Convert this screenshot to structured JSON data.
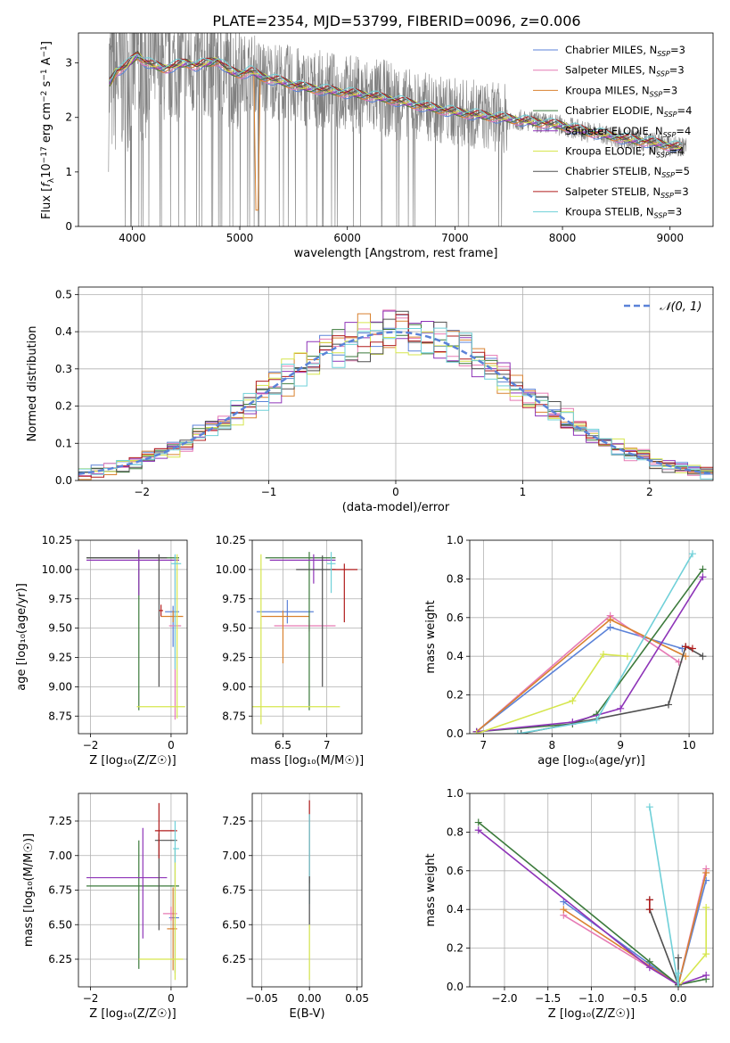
{
  "figure_title": "PLATE=2354, MJD=53799, FIBERID=0096, z=0.006",
  "colors": {
    "Chabrier MILES": "#5b82d8",
    "Salpeter MILES": "#e67ab4",
    "Kroupa MILES": "#d98230",
    "Chabrier ELODIE": "#3b7a3b",
    "Salpeter ELODIE": "#8e34b8",
    "Kroupa ELODIE": "#d6e64e",
    "Chabrier STELIB": "#505050",
    "Salpeter STELIB": "#b01c1c",
    "Kroupa STELIB": "#6fd0d8",
    "data": "#808080",
    "grid": "#b0b0b0"
  },
  "chart_data": [
    {
      "id": "spectrum",
      "type": "line",
      "title": "PLATE=2354, MJD=53799, FIBERID=0096, z=0.006",
      "xlabel": "wavelength [Angstrom, rest frame]",
      "ylabel_parts": [
        "Flux [",
        "f",
        "λ",
        "10",
        "−17",
        " erg cm",
        "−2",
        " s",
        "−1",
        " A",
        "−1",
        "]"
      ],
      "xlim": [
        3500,
        9400
      ],
      "ylim": [
        0,
        3.55
      ],
      "xticks": [
        4000,
        5000,
        6000,
        7000,
        8000,
        9000
      ],
      "yticks": [
        0,
        1,
        2,
        3
      ],
      "grid": false,
      "legend_position": "top-right",
      "legend": [
        {
          "label": "Chabrier MILES, N",
          "sub": "SSP",
          "tail": "=3"
        },
        {
          "label": "Salpeter MILES, N",
          "sub": "SSP",
          "tail": "=3"
        },
        {
          "label": "Kroupa MILES, N",
          "sub": "SSP",
          "tail": "=3"
        },
        {
          "label": "Chabrier ELODIE, N",
          "sub": "SSP",
          "tail": "=4"
        },
        {
          "label": "Salpeter ELODIE, N",
          "sub": "SSP",
          "tail": "=4"
        },
        {
          "label": "Kroupa ELODIE, N",
          "sub": "SSP",
          "tail": "=4"
        },
        {
          "label": "Chabrier STELIB, N",
          "sub": "SSP",
          "tail": "=5"
        },
        {
          "label": "Salpeter STELIB, N",
          "sub": "SSP",
          "tail": "=3"
        },
        {
          "label": "Kroupa STELIB, N",
          "sub": "SSP",
          "tail": "=3"
        }
      ],
      "model_continuum": {
        "x": [
          3780,
          3850,
          3950,
          4050,
          4100,
          4200,
          4300,
          4400,
          4500,
          4600,
          4700,
          4800,
          4900,
          5000,
          5100,
          5200,
          5300,
          5400,
          5500,
          5600,
          5800,
          6000,
          6200,
          6400,
          6600,
          6800,
          7000,
          7200,
          7400,
          7600,
          7800,
          8000,
          8200,
          8400,
          8600,
          8800,
          9000,
          9100
        ],
        "y": [
          2.6,
          2.85,
          2.95,
          3.15,
          3.05,
          2.95,
          2.9,
          2.95,
          3.0,
          2.95,
          3.0,
          3.05,
          2.85,
          2.8,
          2.85,
          2.75,
          2.7,
          2.65,
          2.6,
          2.55,
          2.5,
          2.45,
          2.4,
          2.33,
          2.25,
          2.17,
          2.1,
          2.05,
          2.0,
          1.95,
          1.9,
          1.85,
          1.75,
          1.68,
          1.6,
          1.55,
          1.48,
          1.45
        ]
      },
      "data_range": [
        3780,
        9150
      ]
    },
    {
      "id": "residuals",
      "type": "line",
      "xlabel": "(data-model)/error",
      "ylabel": "Normed distribution",
      "xlim": [
        -2.5,
        2.5
      ],
      "ylim": [
        0,
        0.52
      ],
      "xticks": [
        -2,
        -1,
        0,
        1,
        2
      ],
      "yticks": [
        0.0,
        0.1,
        0.2,
        0.3,
        0.4,
        0.5
      ],
      "grid": true,
      "legend_position": "top-right",
      "legend_label": "𝒩(0, 1)",
      "bin_width": 0.1
    },
    {
      "id": "age-vs-Z",
      "type": "scatter",
      "xlabel": "Z [log₁₀(Z/Z☉)]",
      "ylabel": "age  [log₁₀(age/yr)]",
      "xlim": [
        -2.3,
        0.4
      ],
      "ylim": [
        8.6,
        10.25
      ],
      "xticks": [
        -2,
        0
      ],
      "yticks": [
        8.75,
        9.0,
        9.25,
        9.5,
        9.75,
        10.0,
        10.25
      ],
      "grid": true,
      "points": [
        {
          "model": "Chabrier MILES",
          "x": 0.05,
          "xerr": [
            0.2,
            0.15
          ],
          "y": 9.64,
          "yerr": [
            0.3,
            0.05
          ]
        },
        {
          "model": "Salpeter MILES",
          "x": 0.1,
          "xerr": [
            0.15,
            0.15
          ],
          "y": 9.52,
          "yerr": [
            0.8,
            0.6
          ]
        },
        {
          "model": "Kroupa MILES",
          "x": 0.05,
          "xerr": [
            0.3,
            0.25
          ],
          "y": 9.6,
          "yerr": [
            0.05,
            0.05
          ]
        },
        {
          "model": "Chabrier ELODIE",
          "x": -0.8,
          "xerr": [
            1.3,
            1.0
          ],
          "y": 10.1,
          "yerr": [
            1.3,
            0.06
          ]
        },
        {
          "model": "Salpeter ELODIE",
          "x": -0.8,
          "xerr": [
            1.3,
            1.0
          ],
          "y": 10.08,
          "yerr": [
            0.3,
            0.09
          ]
        },
        {
          "model": "Kroupa ELODIE",
          "x": 0.15,
          "xerr": [
            1.0,
            0.2
          ],
          "y": 8.83,
          "yerr": [
            0.1,
            1.3
          ]
        },
        {
          "model": "Chabrier STELIB",
          "x": -0.3,
          "xerr": [
            1.8,
            0.2
          ],
          "y": 10.1,
          "yerr": [
            1.1,
            0.03
          ]
        },
        {
          "model": "Salpeter STELIB",
          "x": -0.25,
          "xerr": [
            0.05,
            0.05
          ],
          "y": 9.65,
          "yerr": [
            0.05,
            0.05
          ]
        },
        {
          "model": "Kroupa STELIB",
          "x": 0.1,
          "xerr": [
            0.1,
            0.15
          ],
          "y": 10.05,
          "yerr": [
            0.9,
            0.08
          ]
        }
      ]
    },
    {
      "id": "age-vs-mass",
      "type": "scatter",
      "xlabel": "mass [log₁₀(M/M☉)]",
      "ylabel": "",
      "xlim": [
        6.15,
        7.4
      ],
      "ylim": [
        8.6,
        10.25
      ],
      "xticks": [
        6.5,
        7.0
      ],
      "yticks": [
        8.75,
        9.0,
        9.25,
        9.5,
        9.75,
        10.0,
        10.25
      ],
      "grid": true,
      "points": [
        {
          "model": "Chabrier MILES",
          "x": 6.55,
          "xerr": [
            0.35,
            0.3
          ],
          "y": 9.64,
          "yerr": [
            0.1,
            0.1
          ]
        },
        {
          "model": "Salpeter MILES",
          "x": 6.8,
          "xerr": [
            0.4,
            0.3
          ],
          "y": 9.52,
          "yerr": [
            0.05,
            0.05
          ]
        },
        {
          "model": "Kroupa MILES",
          "x": 6.5,
          "xerr": [
            0.25,
            0.3
          ],
          "y": 9.6,
          "yerr": [
            0.4,
            0.05
          ]
        },
        {
          "model": "Chabrier ELODIE",
          "x": 6.8,
          "xerr": [
            0.5,
            0.3
          ],
          "y": 10.1,
          "yerr": [
            1.3,
            0.05
          ]
        },
        {
          "model": "Salpeter ELODIE",
          "x": 6.85,
          "xerr": [
            0.5,
            0.25
          ],
          "y": 10.08,
          "yerr": [
            0.2,
            0.05
          ]
        },
        {
          "model": "Kroupa ELODIE",
          "x": 6.25,
          "xerr": [
            0.1,
            0.9
          ],
          "y": 8.83,
          "yerr": [
            0.15,
            1.3
          ]
        },
        {
          "model": "Chabrier STELIB",
          "x": 6.95,
          "xerr": [
            0.3,
            0.15
          ],
          "y": 10.0,
          "yerr": [
            1.0,
            0.12
          ]
        },
        {
          "model": "Salpeter STELIB",
          "x": 7.2,
          "xerr": [
            0.15,
            0.15
          ],
          "y": 10.0,
          "yerr": [
            0.45,
            0.05
          ]
        },
        {
          "model": "Kroupa STELIB",
          "x": 7.05,
          "xerr": [
            0.05,
            0.05
          ],
          "y": 10.05,
          "yerr": [
            0.25,
            0.1
          ]
        }
      ]
    },
    {
      "id": "weight-vs-age",
      "type": "line",
      "xlabel": "age  [log₁₀(age/yr)]",
      "ylabel": "mass weight",
      "xlim": [
        6.8,
        10.35
      ],
      "ylim": [
        0,
        1
      ],
      "xticks": [
        7,
        8,
        9,
        10
      ],
      "yticks": [
        0.0,
        0.2,
        0.4,
        0.6,
        0.8,
        1.0
      ],
      "grid": true,
      "series": [
        {
          "model": "Chabrier MILES",
          "x": [
            6.9,
            8.85,
            9.9
          ],
          "y": [
            0.01,
            0.55,
            0.44
          ]
        },
        {
          "model": "Salpeter MILES",
          "x": [
            6.9,
            8.85,
            9.85
          ],
          "y": [
            0.01,
            0.61,
            0.37
          ]
        },
        {
          "model": "Kroupa MILES",
          "x": [
            6.9,
            8.85,
            9.95
          ],
          "y": [
            0.01,
            0.59,
            0.4
          ]
        },
        {
          "model": "Chabrier ELODIE",
          "x": [
            6.9,
            8.3,
            8.65,
            10.2
          ],
          "y": [
            0.01,
            0.05,
            0.1,
            0.85
          ]
        },
        {
          "model": "Salpeter ELODIE",
          "x": [
            6.9,
            8.3,
            9.0,
            10.2
          ],
          "y": [
            0.01,
            0.06,
            0.13,
            0.81
          ]
        },
        {
          "model": "Kroupa ELODIE",
          "x": [
            6.9,
            8.3,
            8.75,
            9.1
          ],
          "y": [
            0.0,
            0.17,
            0.41,
            0.4
          ]
        },
        {
          "model": "Chabrier STELIB",
          "x": [
            7.55,
            9.7,
            9.95,
            10.2
          ],
          "y": [
            0.0,
            0.15,
            0.45,
            0.4
          ]
        },
        {
          "model": "Salpeter STELIB",
          "x": [
            9.95,
            10.05
          ],
          "y": [
            0.45,
            0.44
          ]
        },
        {
          "model": "Kroupa STELIB",
          "x": [
            7.5,
            8.65,
            10.05
          ],
          "y": [
            0.0,
            0.07,
            0.93
          ]
        }
      ]
    },
    {
      "id": "mass-vs-Z",
      "type": "scatter",
      "xlabel": "Z [log₁₀(Z/Z☉)]",
      "ylabel": "mass [log₁₀(M/M☉)]",
      "xlim": [
        -2.3,
        0.4
      ],
      "ylim": [
        6.05,
        7.45
      ],
      "xticks": [
        -2,
        0
      ],
      "yticks": [
        6.25,
        6.5,
        6.75,
        7.0,
        7.25
      ],
      "grid": true,
      "points": [
        {
          "model": "Chabrier MILES",
          "x": 0.1,
          "xerr": [
            0.15,
            0.1
          ],
          "y": 6.55,
          "yerr": [
            0.4,
            0.5
          ]
        },
        {
          "model": "Salpeter MILES",
          "x": 0.0,
          "xerr": [
            0.2,
            0.15
          ],
          "y": 6.58,
          "yerr": [
            0.05,
            0.05
          ]
        },
        {
          "model": "Kroupa MILES",
          "x": 0.05,
          "xerr": [
            0.15,
            0.1
          ],
          "y": 6.47,
          "yerr": [
            0.3,
            0.3
          ]
        },
        {
          "model": "Chabrier ELODIE",
          "x": -0.8,
          "xerr": [
            1.3,
            1.0
          ],
          "y": 6.78,
          "yerr": [
            0.6,
            0.33
          ]
        },
        {
          "model": "Salpeter ELODIE",
          "x": -0.7,
          "xerr": [
            1.4,
            0.6
          ],
          "y": 6.84,
          "yerr": [
            0.44,
            0.36
          ]
        },
        {
          "model": "Kroupa ELODIE",
          "x": 0.1,
          "xerr": [
            0.9,
            0.2
          ],
          "y": 6.25,
          "yerr": [
            0.15,
            0.8
          ]
        },
        {
          "model": "Chabrier STELIB",
          "x": -0.3,
          "xerr": [
            0.1,
            0.45
          ],
          "y": 7.11,
          "yerr": [
            0.65,
            0.05
          ]
        },
        {
          "model": "Salpeter STELIB",
          "x": -0.3,
          "xerr": [
            0.1,
            0.45
          ],
          "y": 7.18,
          "yerr": [
            0.2,
            0.2
          ]
        },
        {
          "model": "Kroupa STELIB",
          "x": 0.1,
          "xerr": [
            0.05,
            0.1
          ],
          "y": 7.05,
          "yerr": [
            0.1,
            0.2
          ]
        }
      ]
    },
    {
      "id": "mass-vs-ebv",
      "type": "scatter",
      "xlabel": "E(B-V)",
      "ylabel": "",
      "xlim": [
        -0.06,
        0.055
      ],
      "ylim": [
        6.05,
        7.45
      ],
      "xticks": [
        -0.05,
        0.0,
        0.05
      ],
      "xtick_labels": [
        "−0.05",
        "0.00",
        "0.05"
      ],
      "yticks": [
        6.25,
        6.5,
        6.75,
        7.0,
        7.25
      ],
      "grid": true,
      "points": [
        {
          "model": "Salpeter STELIB",
          "x": 0.0,
          "xerr": [
            0,
            0
          ],
          "y": 7.1,
          "yerr": [
            0.3,
            0.3
          ]
        },
        {
          "model": "Kroupa STELIB",
          "x": 0.0,
          "xerr": [
            0,
            0
          ],
          "y": 7.0,
          "yerr": [
            0.35,
            0.3
          ]
        },
        {
          "model": "Chabrier STELIB",
          "x": 0.0,
          "xerr": [
            0,
            0
          ],
          "y": 6.65,
          "yerr": [
            0.15,
            0.2
          ]
        },
        {
          "model": "Kroupa ELODIE",
          "x": 0.0,
          "xerr": [
            0,
            0
          ],
          "y": 6.3,
          "yerr": [
            0.2,
            0.2
          ]
        }
      ]
    },
    {
      "id": "weight-vs-Z",
      "type": "line",
      "xlabel": "Z [log₁₀(Z/Z☉)]",
      "ylabel": "mass weight",
      "xlim": [
        -2.4,
        0.4
      ],
      "ylim": [
        0,
        1
      ],
      "xticks": [
        -2.0,
        -1.5,
        -1.0,
        -0.5,
        0.0
      ],
      "xtick_labels": [
        "−2.0",
        "−1.5",
        "−1.0",
        "−0.5",
        "0.0"
      ],
      "yticks": [
        0.0,
        0.2,
        0.4,
        0.6,
        0.8,
        1.0
      ],
      "grid": true,
      "series": [
        {
          "model": "Chabrier MILES",
          "x": [
            -1.32,
            0.0,
            0.32
          ],
          "y": [
            0.44,
            0.01,
            0.55
          ]
        },
        {
          "model": "Salpeter MILES",
          "x": [
            -1.32,
            0.0,
            0.32
          ],
          "y": [
            0.37,
            0.01,
            0.61
          ]
        },
        {
          "model": "Kroupa MILES",
          "x": [
            -1.32,
            0.0,
            0.32
          ],
          "y": [
            0.4,
            0.01,
            0.59
          ]
        },
        {
          "model": "Chabrier ELODIE",
          "x": [
            -2.3,
            -0.33,
            0.0,
            0.32
          ],
          "y": [
            0.85,
            0.13,
            0.01,
            0.04
          ]
        },
        {
          "model": "Salpeter ELODIE",
          "x": [
            -2.3,
            -0.33,
            0.0,
            0.32
          ],
          "y": [
            0.81,
            0.1,
            0.01,
            0.06
          ]
        },
        {
          "model": "Kroupa ELODIE",
          "x": [
            0.0,
            0.32,
            0.32
          ],
          "y": [
            0.0,
            0.17,
            0.41
          ]
        },
        {
          "model": "Chabrier STELIB",
          "x": [
            -0.33,
            -0.33,
            0.0,
            0.0
          ],
          "y": [
            0.45,
            0.4,
            0.01,
            0.15
          ]
        },
        {
          "model": "Salpeter STELIB",
          "x": [
            -0.33,
            -0.33
          ],
          "y": [
            0.45,
            0.4
          ]
        },
        {
          "model": "Kroupa STELIB",
          "x": [
            -0.33,
            0.0,
            0.0
          ],
          "y": [
            0.93,
            0.0,
            0.07
          ]
        }
      ]
    }
  ]
}
